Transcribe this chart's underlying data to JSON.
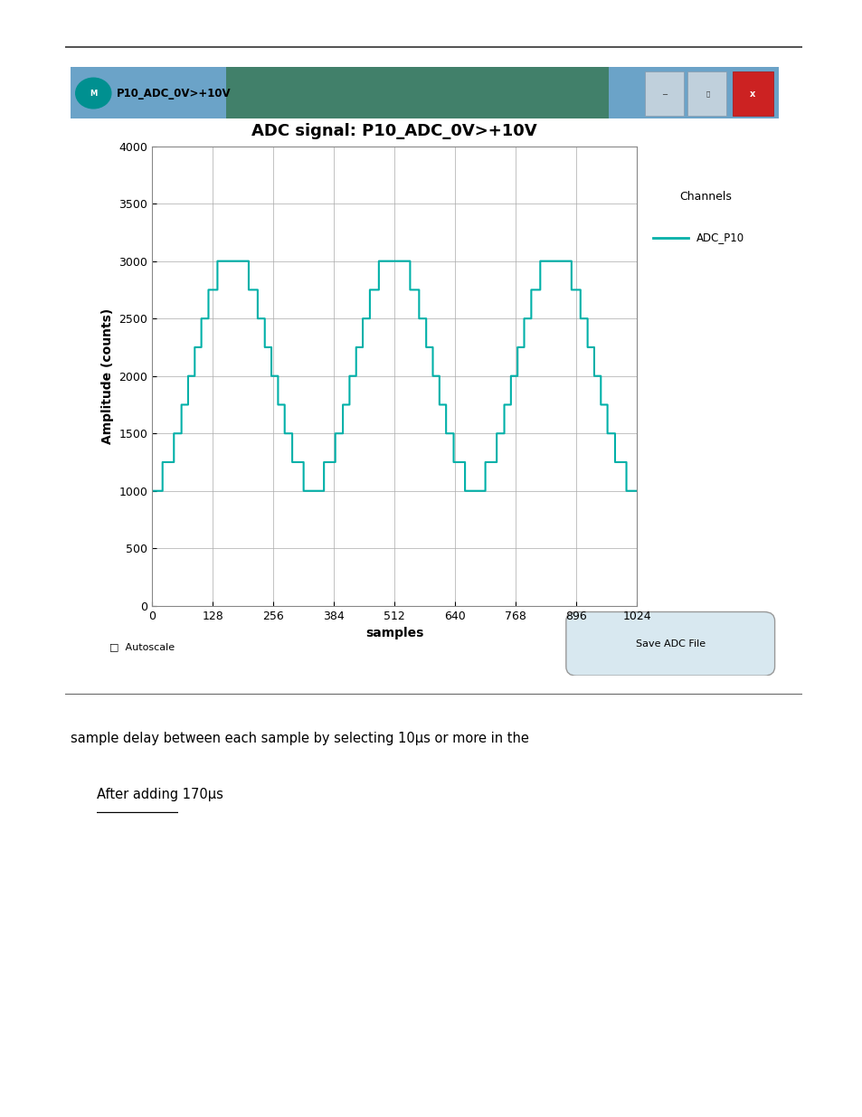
{
  "title": "ADC signal: P10_ADC_0V>+10V",
  "window_title": "P10_ADC_0V>+10V",
  "xlabel": "samples",
  "ylabel": "Amplitude (counts)",
  "legend_title": "Channels",
  "legend_label": "ADC_P10",
  "line_color": "#00B0A8",
  "xlim": [
    0,
    1024
  ],
  "ylim": [
    0,
    4000
  ],
  "xticks": [
    0,
    128,
    256,
    384,
    512,
    640,
    768,
    896,
    1024
  ],
  "yticks": [
    0,
    500,
    1000,
    1500,
    2000,
    2500,
    3000,
    3500,
    4000
  ],
  "win_bg_color": "#C8DCE8",
  "plot_bg_color": "#FFFFFF",
  "text1": "sample delay between each sample by selecting 10μs or more in the",
  "text2": "After adding 170μs",
  "figure_width": 9.54,
  "figure_height": 12.35,
  "titlebar_color": "#6BA3C8",
  "titlebar_green": "#3A7A5A",
  "close_color": "#CC2222",
  "btn_color": "#C0D0DC",
  "legend_bg": "#E4EEF4",
  "grid_color": "#AAAAAA",
  "top_line_color": "#333333",
  "bottom_line_color": "#666666"
}
